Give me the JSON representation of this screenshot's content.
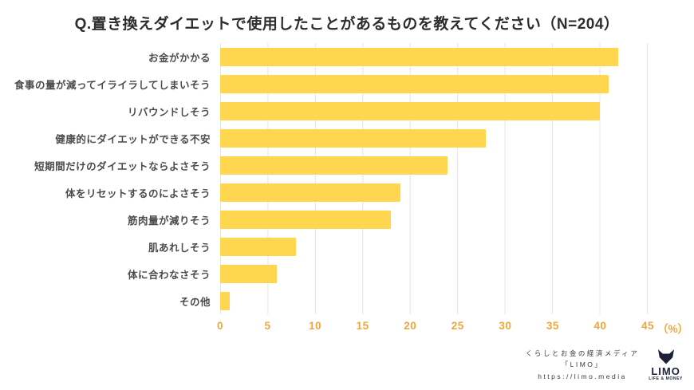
{
  "header": {
    "title": "Q.置き換えダイエットで使用したことがあるものを教えてください（N=204）"
  },
  "chart_data": {
    "type": "bar",
    "orientation": "horizontal",
    "title": "Q.置き換えダイエットで使用したことがあるものを教えてください（N=204）",
    "n_label": "N=204",
    "categories": [
      "お金がかかる",
      "食事の量が減ってイライラしてしまいそう",
      "リバウンドしそう",
      "健康的にダイエットができる不安",
      "短期間だけのダイエットならよさそう",
      "体をリセットするのによさそう",
      "筋肉量が減りそう",
      "肌あれしそう",
      "体に合わなさそう",
      "その他"
    ],
    "values": [
      42,
      41,
      40,
      28,
      24,
      19,
      18,
      8,
      6,
      1
    ],
    "xlim": [
      0,
      45
    ],
    "xticks": [
      0,
      5,
      10,
      15,
      20,
      25,
      30,
      35,
      40,
      45
    ],
    "x_unit": "（%）",
    "xlabel": "",
    "ylabel": "",
    "grid": true,
    "legend_position": "none",
    "bar_color": "#ffd64f",
    "tick_color": "#f0a63c",
    "grid_color": "#e4e4e4"
  },
  "footer": {
    "credit_line1": "くらしとお金の経済メディア",
    "credit_line2": "「LIMO」",
    "credit_url": "https://limo.media",
    "logo_text": "LIMO",
    "logo_tagline": "LIFE & MONEY"
  }
}
